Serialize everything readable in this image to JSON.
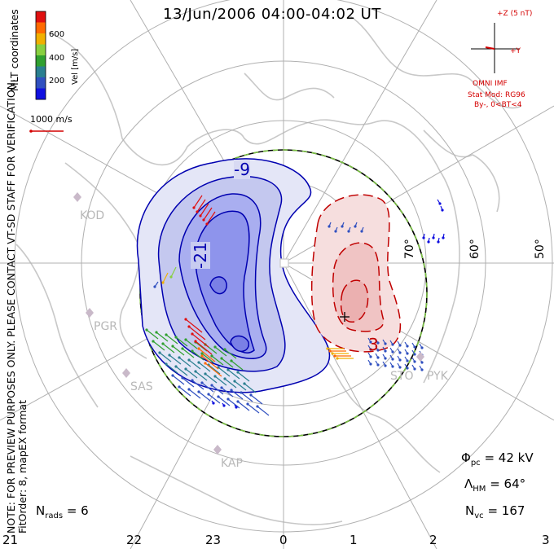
{
  "title": "13/Jun/2006 04:00-04:02 UT",
  "sidebar": {
    "coordinates": "MLT coordinates",
    "note1": "NOTE: FOR PREVIEW PURPOSES ONLY. PLEASE CONTACT VT-SD STAFF FOR VERIFICATION.",
    "note2": "FitOrder: 8, mapEX format"
  },
  "colorbar": {
    "label": "Vel [m/s]",
    "ticks": [
      "600",
      "400",
      "200"
    ],
    "colors": [
      "#e01010",
      "#ff6a00",
      "#f0b000",
      "#88d040",
      "#30a030",
      "#2a7f90",
      "#3050c0",
      "#1010e0"
    ]
  },
  "vector_scale": {
    "label": "1000 m/s"
  },
  "imf": {
    "bz_label": "+Z (5 nT)",
    "by_label": "+Y",
    "source": "OMNI IMF",
    "model_line1": "Stat Mod: RG96",
    "model_line2": "By-, 0<BT<4"
  },
  "contour_labels": {
    "neg1": "-9",
    "neg2": "-21",
    "pos1": "3"
  },
  "latitude_labels": [
    "70°",
    "60°",
    "50°"
  ],
  "radar_sites": [
    "KOD",
    "PGR",
    "SAS",
    "KAP",
    "STO",
    "PYK"
  ],
  "stats": {
    "phi_pc": "= 42 kV",
    "lambda_hm": "= 64°",
    "n_vc": "= 167",
    "n_rads": "= 6"
  },
  "mlt_axis": [
    "21",
    "22",
    "23",
    "0",
    "1",
    "2",
    "3"
  ],
  "colors": {
    "negative_potential": "#0000b0",
    "positive_potential": "#c00000",
    "hmb": "#000000",
    "hmb_dash": "#7ac142"
  }
}
